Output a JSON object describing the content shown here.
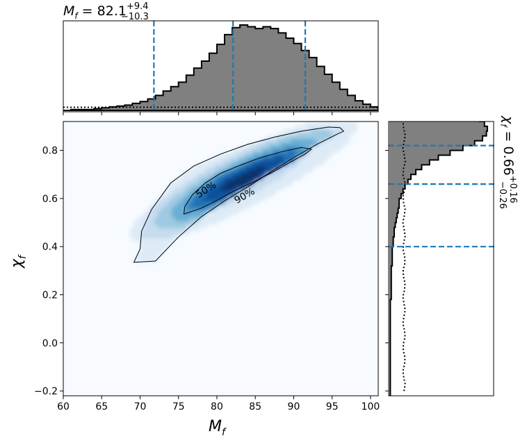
{
  "chart_data": [
    {
      "type": "heatmap",
      "panel": "joint",
      "xlabel_main": "M",
      "xlabel_sub": "f",
      "ylabel_main": "χ",
      "ylabel_sub": "f",
      "xlim": [
        60,
        101
      ],
      "ylim": [
        -0.22,
        0.92
      ],
      "x_ticks": [
        60,
        65,
        70,
        75,
        80,
        85,
        90,
        95,
        100
      ],
      "y_ticks": [
        -0.2,
        0.0,
        0.2,
        0.4,
        0.6,
        0.8
      ],
      "y_tick_labels": [
        "−0.2",
        "0.0",
        "0.2",
        "0.4",
        "0.6",
        "0.8"
      ],
      "colormap": "Blues",
      "contours": [
        {
          "label": "90%",
          "points": [
            [
              69.2,
              0.335
            ],
            [
              72.0,
              0.34
            ],
            [
              75.0,
              0.44
            ],
            [
              78.0,
              0.525
            ],
            [
              81.0,
              0.59
            ],
            [
              84.0,
              0.648
            ],
            [
              87.0,
              0.71
            ],
            [
              90.0,
              0.77
            ],
            [
              93.0,
              0.825
            ],
            [
              95.5,
              0.865
            ],
            [
              96.5,
              0.88
            ],
            [
              96.0,
              0.895
            ],
            [
              94.5,
              0.897
            ],
            [
              91.0,
              0.88
            ],
            [
              87.5,
              0.855
            ],
            [
              84.0,
              0.825
            ],
            [
              80.5,
              0.785
            ],
            [
              77.0,
              0.735
            ],
            [
              74.0,
              0.665
            ],
            [
              71.5,
              0.555
            ],
            [
              70.2,
              0.465
            ],
            [
              70.0,
              0.39
            ],
            [
              69.2,
              0.335
            ]
          ]
        },
        {
          "label": "50%",
          "points": [
            [
              75.7,
              0.535
            ],
            [
              78.0,
              0.56
            ],
            [
              80.0,
              0.592
            ],
            [
              82.0,
              0.628
            ],
            [
              84.5,
              0.665
            ],
            [
              87.0,
              0.705
            ],
            [
              89.5,
              0.75
            ],
            [
              91.5,
              0.785
            ],
            [
              92.3,
              0.805
            ],
            [
              91.0,
              0.812
            ],
            [
              88.5,
              0.795
            ],
            [
              85.5,
              0.768
            ],
            [
              83.0,
              0.738
            ],
            [
              80.5,
              0.705
            ],
            [
              78.5,
              0.665
            ],
            [
              76.8,
              0.615
            ],
            [
              75.8,
              0.565
            ],
            [
              75.7,
              0.535
            ]
          ]
        }
      ]
    },
    {
      "type": "bar",
      "panel": "top-marginal",
      "title_main": "M",
      "title_sub": "f",
      "title_value": " = 82.1",
      "title_sup": "+9.4",
      "title_inf": "−10.3",
      "xlim": [
        60,
        101
      ],
      "bin_edges_start": 61.0,
      "bin_width": 1.0,
      "densities": [
        0.01,
        0.01,
        0.01,
        0.02,
        0.03,
        0.04,
        0.05,
        0.06,
        0.08,
        0.1,
        0.13,
        0.17,
        0.22,
        0.27,
        0.32,
        0.4,
        0.48,
        0.56,
        0.65,
        0.75,
        0.86,
        0.94,
        0.97,
        0.95,
        0.93,
        0.95,
        0.93,
        0.88,
        0.82,
        0.76,
        0.68,
        0.6,
        0.5,
        0.41,
        0.32,
        0.24,
        0.17,
        0.11,
        0.07,
        0.04,
        0.02
      ],
      "prior_density": 0.035,
      "quantiles": [
        71.8,
        82.1,
        91.5
      ]
    },
    {
      "type": "bar",
      "panel": "right-marginal",
      "title_main": "χ",
      "title_sub": "f",
      "title_value": " = 0.66",
      "title_sup": "+0.16",
      "title_inf": "−0.26",
      "ylim": [
        -0.22,
        0.92
      ],
      "bin_edges_start": -0.22,
      "bin_width": 0.02,
      "densities": [
        0.01,
        0.01,
        0.01,
        0.01,
        0.01,
        0.01,
        0.01,
        0.01,
        0.01,
        0.01,
        0.01,
        0.01,
        0.01,
        0.01,
        0.01,
        0.01,
        0.01,
        0.01,
        0.01,
        0.01,
        0.02,
        0.02,
        0.02,
        0.02,
        0.02,
        0.02,
        0.02,
        0.03,
        0.03,
        0.03,
        0.03,
        0.04,
        0.04,
        0.05,
        0.05,
        0.06,
        0.07,
        0.08,
        0.09,
        0.1,
        0.1,
        0.12,
        0.14,
        0.16,
        0.19,
        0.22,
        0.27,
        0.33,
        0.41,
        0.5,
        0.62,
        0.75,
        0.87,
        0.95,
        0.99,
        1.0,
        0.97,
        0.92,
        0.84,
        0.74,
        0.64,
        0.54,
        0.45,
        0.37,
        0.3,
        0.23,
        0.16,
        0.11,
        0.07,
        0.04,
        0.03,
        0.02,
        0.02,
        0.01,
        0.01,
        0.01,
        0.01,
        0.01,
        0.01,
        0.01,
        0.01,
        0.01,
        0.01,
        0.01,
        0.01,
        0.01
      ],
      "prior_density": 0.15,
      "quantiles": [
        0.4,
        0.66,
        0.82
      ]
    }
  ]
}
